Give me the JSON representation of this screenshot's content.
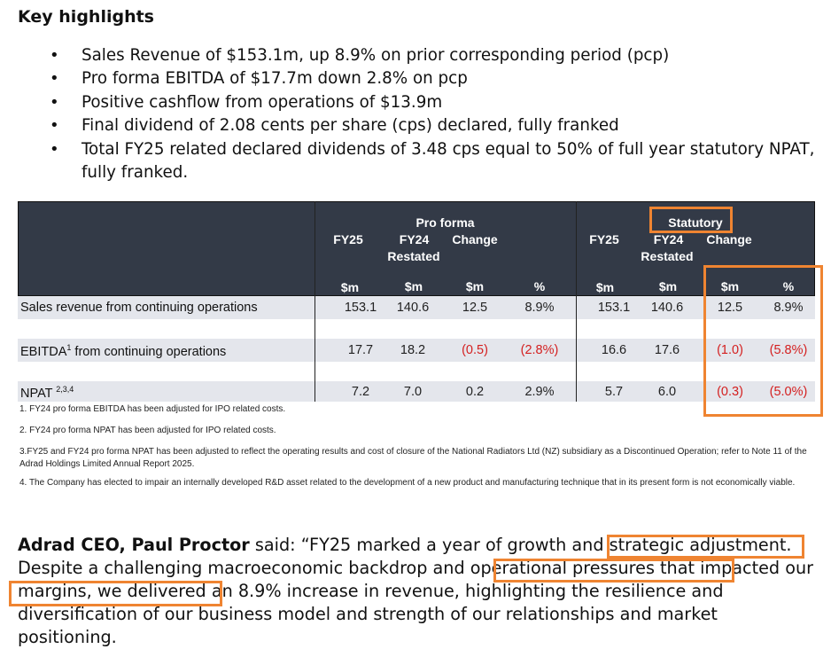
{
  "heading": "Key highlights",
  "bullets": [
    "Sales Revenue of $153.1m, up 8.9% on prior corresponding period (pcp)",
    "Pro forma EBITDA of $17.7m down 2.8% on pcp",
    "Positive cashflow from operations of $13.9m",
    "Final dividend of 2.08 cents per share (cps) declared, fully franked",
    "Total FY25 related declared dividends of 3.48 cps equal to 50% of full year statutory NPAT, fully franked."
  ],
  "table": {
    "proforma_title": "Pro forma",
    "statutory_title": "Statutory",
    "col_fy25": "FY25",
    "col_fy24": "FY24",
    "col_restated": "Restated",
    "col_change": "Change",
    "unit_m": "$m",
    "unit_pct": "%",
    "rows": [
      {
        "label": "Sales revenue from continuing operations",
        "sup": "",
        "values": [
          "153.1",
          "140.6",
          "12.5",
          "8.9%",
          "153.1",
          "140.6",
          "12.5",
          "8.9%"
        ]
      },
      {
        "label": "EBITDA",
        "sup": "1",
        "label_rest": " from continuing operations",
        "values": [
          "17.7",
          "18.2",
          "(0.5)",
          "(2.8%)",
          "16.6",
          "17.6",
          "(1.0)",
          "(5.8%)"
        ]
      },
      {
        "label": "NPAT ",
        "sup": "2,3,4",
        "values": [
          "7.2",
          "7.0",
          "0.2",
          "2.9%",
          "5.7",
          "6.0",
          "(0.3)",
          "(5.0%)"
        ]
      }
    ]
  },
  "footnotes": [
    "1. FY24 pro forma EBITDA has been adjusted for IPO related costs.",
    "2. FY24 pro forma NPAT has been adjusted for IPO related costs.",
    "3.FY25 and FY24 pro forma NPAT has been adjusted to reflect the operating results and cost of closure of the National Radiators Ltd (NZ) subsidiary as a Discontinued Operation; refer to Note 11 of the Adrad Holdings Limited Annual Report 2025.",
    "4. The Company has elected to impair an internally developed R&D asset related to the development of a new product and manufacturing technique that in its present form is not economically viable."
  ],
  "quote": {
    "speaker": "Adrad CEO, Paul Proctor",
    "said": " said: “FY25 marked a year of growth and ",
    "hl1": "strategic adjustment.",
    "mid1": " Despite a challenging macroeconomic backdrop and ",
    "hl2": "operational pressures that impacted our margins",
    "rest": ", we delivered an 8.9% increase in revenue, highlighting the resilience and diversification of our business model and strength of our relationships and market positioning."
  },
  "colors": {
    "header_bg": "#333a47",
    "row_shade": "#e4e6ec",
    "negative": "#d42020",
    "highlight_box": "#ef8431"
  }
}
